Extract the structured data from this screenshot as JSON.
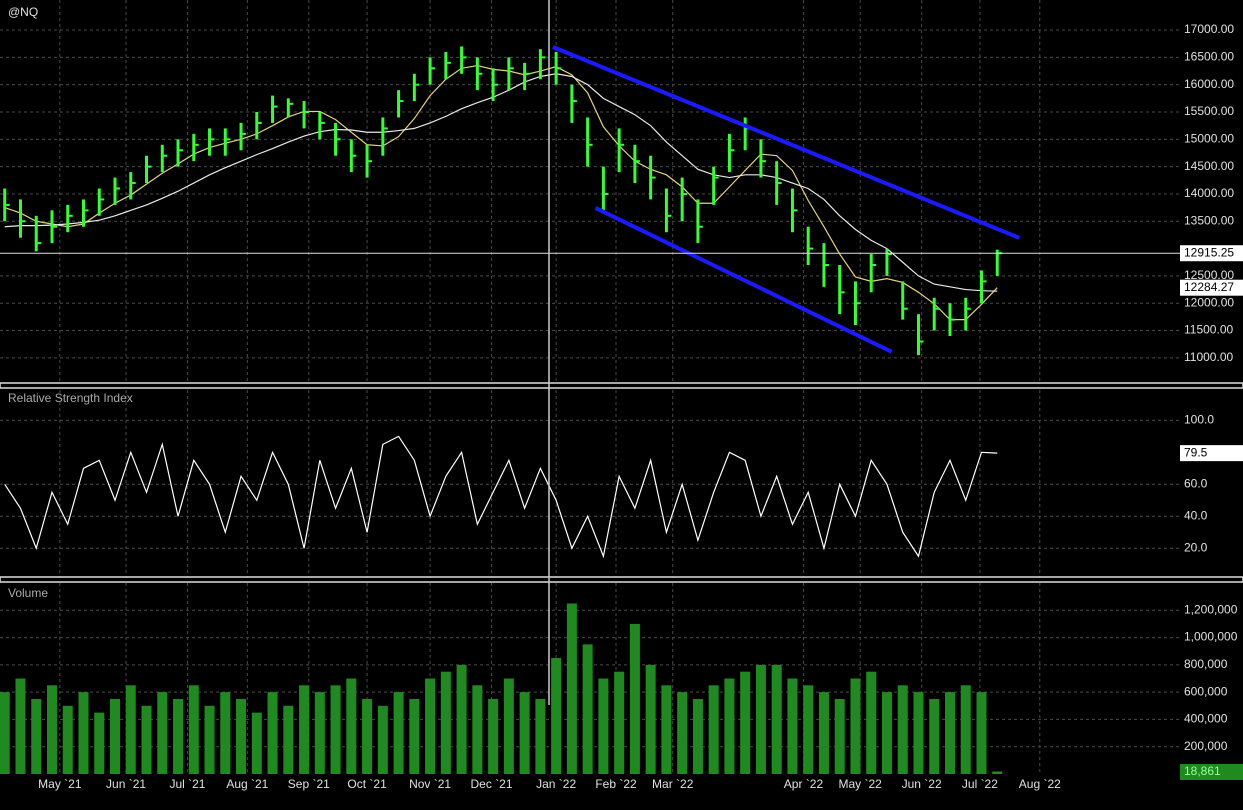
{
  "chart_data": [
    {
      "type": "ohlc",
      "title": "@NQ",
      "color": "#33ff33",
      "high": [
        14100,
        13900,
        13600,
        13700,
        13800,
        13900,
        14100,
        14300,
        14400,
        14700,
        14900,
        15000,
        15100,
        15200,
        15200,
        15300,
        15500,
        15800,
        15750,
        15700,
        15500,
        15300,
        15000,
        14900,
        15400,
        15900,
        16200,
        16500,
        16600,
        16700,
        16500,
        16300,
        16500,
        16400,
        16650,
        16600,
        16000,
        15400,
        14500,
        15200,
        14900,
        14700,
        14100,
        14300,
        13900,
        14500,
        15100,
        15400,
        15000,
        14600,
        14100,
        13400,
        13100,
        12700,
        12400,
        12900,
        13000,
        12400,
        11800,
        12100,
        12000,
        12100,
        12600,
        12980
      ],
      "low": [
        13500,
        13200,
        12950,
        13100,
        13300,
        13400,
        13600,
        13800,
        13900,
        14200,
        14400,
        14500,
        14600,
        14700,
        14700,
        14800,
        15000,
        15300,
        15400,
        15200,
        15000,
        14700,
        14400,
        14300,
        14700,
        15400,
        15700,
        16000,
        16100,
        16200,
        15900,
        15700,
        15900,
        15900,
        16100,
        16000,
        15300,
        14500,
        13700,
        14400,
        14200,
        13900,
        13300,
        13500,
        13100,
        13800,
        14400,
        14800,
        14300,
        13800,
        13300,
        12700,
        12300,
        11800,
        11600,
        12200,
        12500,
        11700,
        11050,
        11500,
        11400,
        11500,
        12000,
        12500
      ],
      "close": [
        13800,
        13500,
        13100,
        13400,
        13600,
        13700,
        13900,
        14100,
        14200,
        14500,
        14700,
        14800,
        14900,
        15000,
        15000,
        15100,
        15300,
        15600,
        15650,
        15500,
        15300,
        15000,
        14700,
        14600,
        15200,
        15700,
        16000,
        16300,
        16400,
        16500,
        16200,
        16000,
        16300,
        16200,
        16500,
        16300,
        15700,
        14900,
        14000,
        14900,
        14600,
        14300,
        13600,
        14000,
        13400,
        14300,
        14800,
        15200,
        14600,
        14200,
        13700,
        13000,
        12700,
        12200,
        12000,
        12700,
        12900,
        11900,
        11300,
        11900,
        11700,
        11900,
        12400,
        12915.25
      ],
      "series": [
        {
          "color": "#e6d27a",
          "values": [
            13750,
            13650,
            13500,
            13450,
            13400,
            13450,
            13650,
            13830,
            13980,
            14180,
            14380,
            14550,
            14730,
            14850,
            14930,
            15000,
            15100,
            15250,
            15410,
            15510,
            15510,
            15360,
            15130,
            14900,
            14880,
            15050,
            15380,
            15800,
            16100,
            16300,
            16350,
            16280,
            16250,
            16180,
            16250,
            16330,
            16180,
            15850,
            15230,
            14880,
            14600,
            14450,
            14350,
            14130,
            13830,
            13830,
            14130,
            14430,
            14730,
            14700,
            14430,
            13880,
            13400,
            12900,
            12480,
            12400,
            12450,
            12380,
            12200,
            11990,
            11700,
            11700,
            11980,
            12284.27
          ]
        },
        {
          "color": "#e8e8e8",
          "values": [
            13400,
            13420,
            13420,
            13430,
            13450,
            13480,
            13520,
            13600,
            13700,
            13800,
            13920,
            14050,
            14200,
            14350,
            14480,
            14600,
            14720,
            14830,
            14950,
            15060,
            15140,
            15180,
            15170,
            15130,
            15130,
            15160,
            15200,
            15300,
            15420,
            15560,
            15670,
            15770,
            15900,
            16050,
            16150,
            16200,
            16150,
            16000,
            15750,
            15600,
            15450,
            15250,
            14950,
            14700,
            14450,
            14350,
            14300,
            14350,
            14350,
            14300,
            14200,
            14100,
            13900,
            13600,
            13350,
            13150,
            13000,
            12750,
            12500,
            12350,
            12300,
            12250,
            12230,
            12220
          ]
        }
      ],
      "trendlines": [
        {
          "color": "#1a1aff",
          "x": [
            34.8,
            64.4
          ],
          "y": [
            16690,
            13195
          ]
        },
        {
          "color": "#1a1aff",
          "x": [
            37.5,
            56.3
          ],
          "y": [
            13744,
            11110
          ]
        }
      ],
      "xlim": [
        -0.3,
        74.6
      ],
      "ylim": [
        10540,
        17550
      ],
      "yticks": [
        {
          "value": 11000,
          "label": "11000.00"
        },
        {
          "value": 11500,
          "label": "11500.00"
        },
        {
          "value": 12000,
          "label": "12000.00"
        },
        {
          "value": 12500,
          "label": "12500.00"
        },
        {
          "value": 13500,
          "label": "13500.00"
        },
        {
          "value": 14000,
          "label": "14000.00"
        },
        {
          "value": 14500,
          "label": "14500.00"
        },
        {
          "value": 15000,
          "label": "15000.00"
        },
        {
          "value": 15500,
          "label": "15500.00"
        },
        {
          "value": 16000,
          "label": "16000.00"
        },
        {
          "value": 16500,
          "label": "16500.00"
        },
        {
          "value": 17000,
          "label": "17000.00"
        }
      ],
      "grid": true
    },
    {
      "type": "line",
      "title": "Relative Strength Index",
      "color": "#ffffff",
      "values": [
        60,
        45,
        20,
        55,
        35,
        70,
        75,
        50,
        80,
        55,
        85,
        40,
        75,
        60,
        30,
        65,
        50,
        80,
        60,
        20,
        75,
        45,
        70,
        30,
        85,
        90,
        75,
        40,
        65,
        80,
        35,
        55,
        75,
        45,
        70,
        50,
        20,
        40,
        15,
        65,
        45,
        75,
        30,
        60,
        25,
        55,
        80,
        75,
        40,
        65,
        35,
        55,
        20,
        60,
        40,
        75,
        60,
        30,
        15,
        55,
        75,
        50,
        80,
        79.5
      ],
      "xlim": [
        -0.3,
        74.6
      ],
      "ylim": [
        2,
        119
      ],
      "yticks": [
        {
          "value": 20,
          "label": "20.0"
        },
        {
          "value": 40,
          "label": "40.0"
        },
        {
          "value": 60,
          "label": "60.0"
        },
        {
          "value": 100,
          "label": "100.0"
        }
      ],
      "grid": true
    },
    {
      "type": "bar",
      "title": "Volume",
      "color": "#1f8a1f",
      "values": [
        600000,
        700000,
        550000,
        650000,
        500000,
        600000,
        450000,
        550000,
        650000,
        500000,
        600000,
        550000,
        650000,
        500000,
        600000,
        550000,
        450000,
        600000,
        500000,
        650000,
        600000,
        650000,
        700000,
        550000,
        500000,
        600000,
        550000,
        700000,
        750000,
        800000,
        650000,
        550000,
        700000,
        600000,
        550000,
        850000,
        1250000,
        950000,
        700000,
        750000,
        1100000,
        800000,
        650000,
        600000,
        550000,
        650000,
        700000,
        750000,
        800000,
        800000,
        700000,
        650000,
        600000,
        550000,
        700000,
        750000,
        600000,
        650000,
        600000,
        550000,
        600000,
        650000,
        600000,
        18861
      ],
      "value_labels": [
        null,
        null,
        null,
        null,
        null,
        null,
        null,
        null,
        null,
        null,
        null,
        null,
        null,
        null,
        null,
        null,
        null,
        null,
        null,
        null,
        null,
        null,
        null,
        null,
        null,
        null,
        null,
        null,
        null,
        null,
        null,
        null,
        null,
        null,
        null,
        null,
        null,
        null,
        null,
        null,
        null,
        null,
        null,
        null,
        null,
        null,
        null,
        null,
        null,
        null,
        null,
        null,
        null,
        null,
        null,
        null,
        null,
        null,
        null,
        null,
        null,
        null,
        null,
        "18,861"
      ],
      "xlim": [
        -0.3,
        74.6
      ],
      "ylim": [
        0,
        1400000
      ],
      "yticks": [
        {
          "value": 200000,
          "label": "200,000"
        },
        {
          "value": 400000,
          "label": "400,000"
        },
        {
          "value": 600000,
          "label": "600,000"
        },
        {
          "value": 800000,
          "label": "800,000"
        },
        {
          "value": 1000000,
          "label": "1,000,000"
        },
        {
          "value": 1200000,
          "label": "1,200,000"
        }
      ],
      "xticks": [
        {
          "value": 3.5,
          "label": "May `21"
        },
        {
          "value": 7.7,
          "label": "Jun `21"
        },
        {
          "value": 11.6,
          "label": "Jul `21"
        },
        {
          "value": 15.4,
          "label": "Aug `21"
        },
        {
          "value": 19.3,
          "label": "Sep `21"
        },
        {
          "value": 23.0,
          "label": "Oct `21"
        },
        {
          "value": 27.0,
          "label": "Nov `21"
        },
        {
          "value": 30.9,
          "label": "Dec `21"
        },
        {
          "value": 35.0,
          "label": "Jan `22"
        },
        {
          "value": 38.8,
          "label": "Feb `22"
        },
        {
          "value": 42.4,
          "label": "Mar `22"
        },
        {
          "value": 50.7,
          "label": "Apr `22"
        },
        {
          "value": 54.3,
          "label": "May `22"
        },
        {
          "value": 58.2,
          "label": "Jun `22"
        },
        {
          "value": 61.9,
          "label": "Jul `22"
        },
        {
          "value": 65.7,
          "label": "Aug `22"
        }
      ],
      "grid": true
    }
  ]
}
